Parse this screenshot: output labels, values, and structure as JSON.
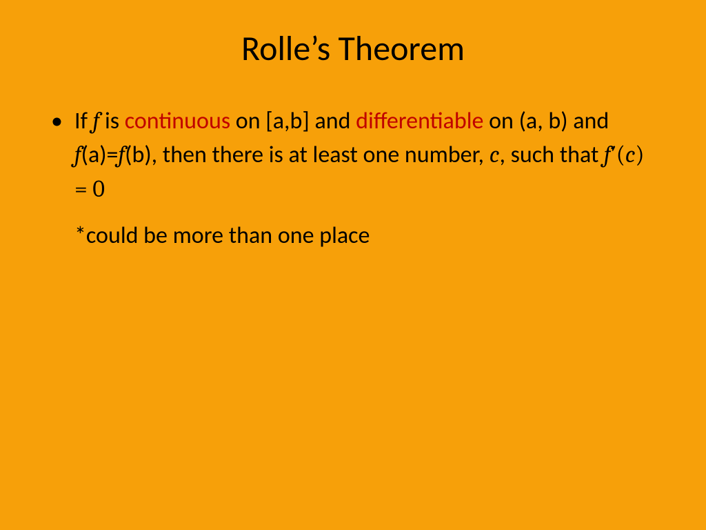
{
  "slide": {
    "background_color": "#f7a009",
    "text_color": "#000000",
    "highlight_color": "#c00000",
    "title_fontsize": 50,
    "body_fontsize": 34,
    "title": "Rolle’s Theorem",
    "bullet": {
      "seg1": "If ",
      "seg2_f": "f",
      "seg3": " is ",
      "seg4_hl": "continuous",
      "seg5": " on [a,b] and ",
      "seg6_hl": "differentiable",
      "seg7": " on (a, b) and ",
      "seg8_f": "f",
      "seg9": "(a)=",
      "seg10_f": "f",
      "seg11": "(b), then there is at least one number, ",
      "seg12_c": "c",
      "seg13": ", such that  ",
      "math_f": "f",
      "math_prime": "′",
      "math_open": "(",
      "math_c": "c",
      "math_close": ")",
      "math_eq": " = 0"
    },
    "note": "*could be more than one place"
  }
}
